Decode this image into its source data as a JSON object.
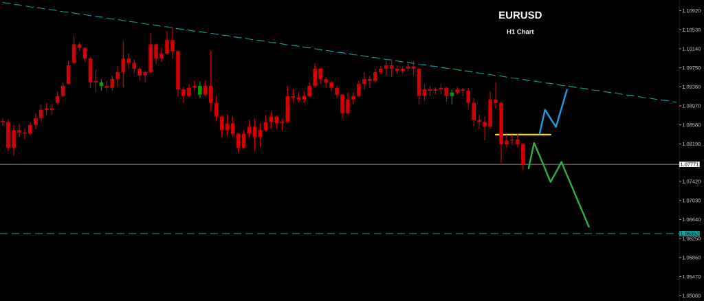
{
  "chart_data": {
    "type": "candlestick",
    "title": "EURUSD",
    "subtitle": "H1 Chart",
    "categories": [
      null,
      null,
      null,
      null,
      null,
      null,
      null,
      null,
      null,
      null,
      null,
      null,
      null,
      null,
      null,
      null,
      null,
      null,
      null,
      null,
      null,
      null,
      null,
      null,
      null,
      null,
      null,
      null,
      null,
      null,
      null,
      null,
      null,
      null,
      null,
      null,
      null,
      null,
      null,
      null,
      null,
      null,
      null,
      null,
      null,
      null,
      null,
      null,
      null,
      null,
      null,
      null,
      null,
      null,
      null,
      null,
      null,
      null,
      null,
      null,
      null,
      null,
      null,
      null,
      null,
      null,
      null,
      null,
      null,
      null,
      null,
      null,
      null,
      null,
      null,
      null,
      null,
      null,
      null,
      null,
      null,
      null,
      null,
      null,
      null,
      null,
      null,
      null,
      null,
      null,
      null,
      null,
      null,
      null,
      null,
      null,
      null,
      null,
      null,
      null,
      null,
      null,
      null,
      null,
      null,
      null,
      null,
      null,
      null,
      null,
      null,
      null,
      null,
      null,
      null,
      null,
      null,
      null,
      null,
      null,
      null,
      null,
      null,
      null
    ],
    "ohlc": [
      [
        1.0864,
        1.0872,
        1.0856,
        1.0866
      ],
      [
        1.0864,
        1.0869,
        1.0804,
        1.0811
      ],
      [
        1.0811,
        1.0858,
        1.0795,
        1.0847
      ],
      [
        1.0847,
        1.0861,
        1.0833,
        1.0842
      ],
      [
        1.0842,
        1.0851,
        1.0828,
        1.084
      ],
      [
        1.084,
        1.0864,
        1.0838,
        1.0858
      ],
      [
        1.0858,
        1.0882,
        1.0849,
        1.0872
      ],
      [
        1.0872,
        1.09,
        1.0864,
        1.0889
      ],
      [
        1.0889,
        1.0903,
        1.0878,
        1.0892
      ],
      [
        1.0892,
        1.09,
        1.0879,
        1.0889
      ],
      [
        1.0903,
        1.0927,
        1.0899,
        1.0917
      ],
      [
        1.0917,
        1.0945,
        1.0914,
        1.0938
      ],
      [
        1.0942,
        1.099,
        1.0941,
        1.098
      ],
      [
        1.0985,
        1.1041,
        1.0983,
        1.1023
      ],
      [
        1.1023,
        1.1027,
        1.1009,
        1.1016
      ],
      [
        1.1016,
        1.1018,
        1.0987,
        1.0994
      ],
      [
        1.0994,
        1.0997,
        1.0934,
        1.0945
      ],
      [
        1.0945,
        1.0971,
        1.0924,
        1.0948
      ],
      [
        1.0945,
        1.0952,
        1.0928,
        1.0938
      ],
      [
        1.0938,
        1.0948,
        1.0927,
        1.0934
      ],
      [
        1.0934,
        1.0959,
        1.0928,
        1.0952
      ],
      [
        1.0952,
        1.0978,
        1.0935,
        1.0966
      ],
      [
        1.0966,
        1.103,
        1.0935,
        1.0994
      ],
      [
        1.0994,
        1.1004,
        1.0973,
        1.0985
      ],
      [
        1.0985,
        1.0992,
        1.0963,
        1.0973
      ],
      [
        1.0973,
        1.0976,
        1.0949,
        1.0959
      ],
      [
        1.0959,
        1.0969,
        1.0945,
        1.0966
      ],
      [
        1.0966,
        1.1047,
        1.0963,
        1.1023
      ],
      [
        1.1023,
        1.1025,
        1.0983,
        1.0994
      ],
      [
        1.0994,
        1.1016,
        1.0987,
        1.1004
      ],
      [
        1.1004,
        1.1051,
        1.1002,
        1.1032
      ],
      [
        1.1032,
        1.1058,
        1.0994,
        1.1009
      ],
      [
        1.1009,
        1.1011,
        1.0917,
        1.0931
      ],
      [
        1.0931,
        1.0935,
        1.0903,
        1.0917
      ],
      [
        1.0917,
        1.0941,
        1.0914,
        1.0934
      ],
      [
        1.0934,
        1.0949,
        1.0927,
        1.0938
      ],
      [
        1.0938,
        1.0947,
        1.0913,
        1.092
      ],
      [
        1.092,
        1.0949,
        1.0917,
        1.0938
      ],
      [
        1.0938,
        1.1011,
        1.0885,
        1.0903
      ],
      [
        1.0903,
        1.0917,
        1.0865,
        1.0875
      ],
      [
        1.0875,
        1.0878,
        1.0833,
        1.0847
      ],
      [
        1.0847,
        1.0879,
        1.0837,
        1.0861
      ],
      [
        1.0861,
        1.0875,
        1.0833,
        1.084
      ],
      [
        1.084,
        1.0842,
        1.0802,
        1.0811
      ],
      [
        1.0811,
        1.0847,
        1.0809,
        1.084
      ],
      [
        1.084,
        1.0868,
        1.0833,
        1.0854
      ],
      [
        1.0854,
        1.0871,
        1.0804,
        1.0833
      ],
      [
        1.0833,
        1.0861,
        1.0814,
        1.0847
      ],
      [
        1.0847,
        1.0878,
        1.0844,
        1.0864
      ],
      [
        1.0864,
        1.0885,
        1.0851,
        1.0875
      ],
      [
        1.0875,
        1.0878,
        1.0851,
        1.0861
      ],
      [
        1.0861,
        1.0871,
        1.0847,
        1.0864
      ],
      [
        1.0864,
        1.0938,
        1.0861,
        1.0917
      ],
      [
        1.0917,
        1.0931,
        1.0903,
        1.0914
      ],
      [
        1.0914,
        1.0924,
        1.0903,
        1.091
      ],
      [
        1.091,
        1.0927,
        1.0903,
        1.0917
      ],
      [
        1.0917,
        1.0945,
        1.0914,
        1.0938
      ],
      [
        1.0938,
        1.0985,
        1.0935,
        1.0973
      ],
      [
        1.0973,
        1.0976,
        1.0942,
        1.0952
      ],
      [
        1.0952,
        1.0956,
        1.0935,
        1.0945
      ],
      [
        1.0945,
        1.0948,
        1.0927,
        1.0934
      ],
      [
        1.0934,
        1.0938,
        1.0914,
        1.092
      ],
      [
        1.092,
        1.0921,
        1.0871,
        1.0882
      ],
      [
        1.0882,
        1.0924,
        1.0879,
        1.091
      ],
      [
        1.091,
        1.0924,
        1.09,
        1.0917
      ],
      [
        1.0917,
        1.0948,
        1.0914,
        1.0942
      ],
      [
        1.0942,
        1.0966,
        1.0931,
        1.0952
      ],
      [
        1.0952,
        1.0959,
        1.0934,
        1.0948
      ],
      [
        1.0948,
        1.0973,
        1.0945,
        1.0966
      ],
      [
        1.0966,
        1.0979,
        1.0962,
        1.0973
      ],
      [
        1.0973,
        1.099,
        1.0959,
        1.098
      ],
      [
        1.098,
        1.0992,
        1.0956,
        1.0973
      ],
      [
        1.0973,
        1.098,
        1.0962,
        1.0969
      ],
      [
        1.0969,
        1.0978,
        1.0963,
        1.0973
      ],
      [
        1.0973,
        1.0985,
        1.0968,
        1.0978
      ],
      [
        1.0978,
        1.099,
        1.0959,
        1.0973
      ],
      [
        1.0973,
        1.0976,
        1.0899,
        1.0917
      ],
      [
        1.0917,
        1.0941,
        1.0907,
        1.0931
      ],
      [
        1.0931,
        1.0938,
        1.0917,
        1.0928
      ],
      [
        1.0928,
        1.0935,
        1.092,
        1.0931
      ],
      [
        1.0931,
        1.0942,
        1.0921,
        1.0934
      ],
      [
        1.0934,
        1.0937,
        1.0906,
        1.0917
      ],
      [
        1.0917,
        1.0931,
        1.09,
        1.0924
      ],
      [
        1.0924,
        1.0937,
        1.092,
        1.0931
      ],
      [
        1.0931,
        1.0934,
        1.0917,
        1.0928
      ],
      [
        1.0928,
        1.0934,
        1.0893,
        1.0903
      ],
      [
        1.0903,
        1.0913,
        1.0856,
        1.0868
      ],
      [
        1.0868,
        1.0879,
        1.0851,
        1.0864
      ],
      [
        1.0864,
        1.0875,
        1.0826,
        1.0854
      ],
      [
        1.0854,
        1.0927,
        1.0849,
        1.091
      ],
      [
        1.091,
        1.0945,
        1.0892,
        1.0903
      ],
      [
        1.0903,
        1.0906,
        1.078,
        1.0818
      ],
      [
        1.0818,
        1.0838,
        1.0811,
        1.0826
      ],
      [
        1.0826,
        1.0838,
        1.0816,
        1.0828
      ],
      [
        1.0828,
        1.084,
        1.0811,
        1.0818
      ],
      [
        1.0818,
        1.0821,
        1.0765,
        1.0777
      ],
      null,
      null,
      null,
      null,
      null,
      null,
      null,
      null,
      null,
      null,
      null,
      null,
      null,
      null,
      null,
      null,
      null,
      null,
      null,
      null,
      null,
      null,
      null,
      null,
      null,
      null,
      null,
      null
    ],
    "colors": [
      "#d40000",
      "#d40000",
      "#d40000",
      "#d40000",
      "#d40000",
      "#d40000",
      "#d40000",
      "#d40000",
      "#d40000",
      "#d40000",
      "#d40000",
      "#d40000",
      "#d40000",
      "#d40000",
      "#d40000",
      "#d40000",
      "#d40000",
      "#d40000",
      "#00a000",
      "#d40000",
      "#d40000",
      "#d40000",
      "#d40000",
      "#d40000",
      "#d40000",
      "#d40000",
      "#d40000",
      "#d40000",
      "#d40000",
      "#d40000",
      "#d40000",
      "#d40000",
      "#d40000",
      "#d40000",
      "#d40000",
      "#d40000",
      "#00a000",
      "#d40000",
      "#d40000",
      "#d40000",
      "#d40000",
      "#d40000",
      "#d40000",
      "#d40000",
      "#d40000",
      "#d40000",
      "#d40000",
      "#d40000",
      "#d40000",
      "#d40000",
      "#d40000",
      "#d40000",
      "#d40000",
      "#d40000",
      "#d40000",
      "#d40000",
      "#d40000",
      "#d40000",
      "#d40000",
      "#d40000",
      "#d40000",
      "#d40000",
      "#d40000",
      "#d40000",
      "#d40000",
      "#d40000",
      "#d40000",
      "#d40000",
      "#d40000",
      "#d40000",
      "#d40000",
      "#d40000",
      "#d40000",
      "#d40000",
      "#d40000",
      "#d40000",
      "#d40000",
      "#d40000",
      "#d40000",
      "#d40000",
      "#d40000",
      "#d40000",
      "#00a000",
      "#d40000",
      "#d40000",
      "#d40000",
      "#d40000",
      "#d40000",
      "#d40000",
      "#d40000",
      "#d40000",
      "#d40000",
      "#d40000",
      "#d40000",
      "#d40000",
      "#d40000",
      null,
      null,
      null,
      null,
      null,
      null,
      null,
      null,
      null,
      null,
      null,
      null,
      null,
      null,
      null,
      null,
      null,
      null,
      null,
      null,
      null,
      null,
      null,
      null,
      null,
      null,
      null,
      null
    ],
    "series": [
      {
        "type": "line",
        "color": "#1aa3a3",
        "line_style": "dashed",
        "values": [
          1.1109,
          1.1107,
          1.1105,
          1.1104,
          1.1102,
          1.11,
          1.1099,
          1.1097,
          1.1095,
          1.1094,
          1.1092,
          1.109,
          1.1089,
          1.1087,
          1.1085,
          1.1084,
          1.1082,
          1.108,
          1.1079,
          1.1077,
          1.1075,
          1.1074,
          1.1072,
          1.107,
          1.1069,
          1.1067,
          1.1065,
          1.1064,
          1.1062,
          1.106,
          1.1059,
          1.1057,
          1.1055,
          1.1054,
          1.1052,
          1.105,
          1.1049,
          1.1047,
          1.1046,
          1.1044,
          1.1042,
          1.1041,
          1.1039,
          1.1037,
          1.1036,
          1.1034,
          1.1032,
          1.1031,
          1.1029,
          1.1027,
          1.1026,
          1.1024,
          1.1022,
          1.1021,
          1.1019,
          1.1017,
          1.1016,
          1.1014,
          1.1012,
          1.1011,
          1.1009,
          1.1007,
          1.1006,
          1.1004,
          1.1002,
          1.1001,
          1.0999,
          1.0997,
          1.0996,
          1.0994,
          1.0992,
          1.0991,
          1.0989,
          1.0987,
          1.0986,
          1.0984,
          1.0982,
          1.0981,
          1.0979,
          1.0978,
          1.0976,
          1.0974,
          1.0973,
          1.0971,
          1.0969,
          1.0968,
          1.0966,
          1.0964,
          1.0963,
          1.0961,
          1.0959,
          1.0958,
          1.0956,
          1.0954,
          1.0953,
          1.0951,
          1.0949,
          1.0948,
          1.0946,
          1.0944,
          1.0943,
          1.0941,
          1.0939,
          1.0938,
          1.0936,
          1.0934,
          1.0933,
          1.0931,
          1.0929,
          1.0928,
          1.0926,
          1.0924,
          1.0923,
          1.0921,
          1.0919,
          1.0918,
          1.0916,
          1.0914,
          1.0913,
          1.0911,
          1.0909,
          1.0908,
          1.0906,
          1.0904
        ]
      },
      {
        "type": "line",
        "color": "#f5e100",
        "values": [
          null,
          null,
          null,
          null,
          null,
          null,
          null,
          null,
          null,
          null,
          null,
          null,
          null,
          null,
          null,
          null,
          null,
          null,
          null,
          null,
          null,
          null,
          null,
          null,
          null,
          null,
          null,
          null,
          null,
          null,
          null,
          null,
          null,
          null,
          null,
          null,
          null,
          null,
          null,
          null,
          null,
          null,
          null,
          null,
          null,
          null,
          null,
          null,
          null,
          null,
          null,
          null,
          null,
          null,
          null,
          null,
          null,
          null,
          null,
          null,
          null,
          null,
          null,
          null,
          null,
          null,
          null,
          null,
          null,
          null,
          null,
          null,
          null,
          null,
          null,
          null,
          null,
          null,
          null,
          null,
          null,
          null,
          null,
          null,
          null,
          null,
          null,
          null,
          null,
          null,
          1.0838,
          1.0838,
          1.0838,
          1.0838,
          1.0838,
          1.0838,
          1.0838,
          1.0838,
          1.0838,
          1.0838,
          1.0838,
          null,
          null,
          null,
          null,
          null,
          null,
          null,
          null,
          null,
          null,
          null,
          null,
          null,
          null,
          null,
          null,
          null,
          null,
          null,
          null,
          null,
          null,
          null
        ]
      },
      {
        "type": "line",
        "color": "#1e9de8",
        "values": [
          null,
          null,
          null,
          null,
          null,
          null,
          null,
          null,
          null,
          null,
          null,
          null,
          null,
          null,
          null,
          null,
          null,
          null,
          null,
          null,
          null,
          null,
          null,
          null,
          null,
          null,
          null,
          null,
          null,
          null,
          null,
          null,
          null,
          null,
          null,
          null,
          null,
          null,
          null,
          null,
          null,
          null,
          null,
          null,
          null,
          null,
          null,
          null,
          null,
          null,
          null,
          null,
          null,
          null,
          null,
          null,
          null,
          null,
          null,
          null,
          null,
          null,
          null,
          null,
          null,
          null,
          null,
          null,
          null,
          null,
          null,
          null,
          null,
          null,
          null,
          null,
          null,
          null,
          null,
          null,
          null,
          null,
          null,
          null,
          null,
          null,
          null,
          null,
          null,
          null,
          null,
          null,
          null,
          null,
          null,
          null,
          null,
          null,
          1.084,
          1.0889,
          1.0871,
          1.0854,
          1.0892,
          1.093,
          null,
          null,
          null,
          null,
          null,
          null,
          null,
          null,
          null,
          null,
          null,
          null,
          null,
          null,
          null,
          null,
          null,
          null,
          null,
          null
        ]
      },
      {
        "type": "line",
        "color": "#2eb04a",
        "values": [
          null,
          null,
          null,
          null,
          null,
          null,
          null,
          null,
          null,
          null,
          null,
          null,
          null,
          null,
          null,
          null,
          null,
          null,
          null,
          null,
          null,
          null,
          null,
          null,
          null,
          null,
          null,
          null,
          null,
          null,
          null,
          null,
          null,
          null,
          null,
          null,
          null,
          null,
          null,
          null,
          null,
          null,
          null,
          null,
          null,
          null,
          null,
          null,
          null,
          null,
          null,
          null,
          null,
          null,
          null,
          null,
          null,
          null,
          null,
          null,
          null,
          null,
          null,
          null,
          null,
          null,
          null,
          null,
          null,
          null,
          null,
          null,
          null,
          null,
          null,
          null,
          null,
          null,
          null,
          null,
          null,
          null,
          null,
          null,
          null,
          null,
          null,
          null,
          null,
          null,
          null,
          null,
          null,
          null,
          null,
          null,
          1.0769,
          1.0821,
          1.0795,
          1.0768,
          1.0741,
          1.0761,
          1.0782,
          1.0755,
          1.0729,
          1.0702,
          1.0676,
          1.0649,
          null,
          null,
          null,
          null,
          null,
          null,
          null,
          null,
          null,
          null,
          null,
          null,
          null,
          null,
          null,
          null
        ]
      }
    ],
    "ylim": [
      1.0497,
      1.1114
    ],
    "yticks": [
      {
        "value": 1.1092,
        "label": "1.10920"
      },
      {
        "value": 1.1053,
        "label": "1.10530"
      },
      {
        "value": 1.1014,
        "label": "1.10140"
      },
      {
        "value": 1.0975,
        "label": "1.09750"
      },
      {
        "value": 1.0936,
        "label": "1.09360"
      },
      {
        "value": 1.0897,
        "label": "1.08970"
      },
      {
        "value": 1.0858,
        "label": "1.08580"
      },
      {
        "value": 1.0819,
        "label": "1.08190"
      },
      {
        "value": 1.0781,
        "label": null
      },
      {
        "value": 1.0742,
        "label": "1.07420"
      },
      {
        "value": 1.0703,
        "label": "1.07030"
      },
      {
        "value": 1.0664,
        "label": "1.06640"
      },
      {
        "value": 1.0625,
        "label": "1.06250"
      },
      {
        "value": 1.0586,
        "label": "1.05860"
      },
      {
        "value": 1.0547,
        "label": "1.05470"
      },
      {
        "value": 1.0508,
        "label": "1.05080"
      }
    ],
    "tick_labels": "y",
    "ref_lines": [
      {
        "axis": "y",
        "value": 1.07771,
        "label": "1.07771",
        "color": "#8c8c8c"
      },
      {
        "axis": "y",
        "value": 1.06352,
        "label": "1.06352",
        "color": "#1aa3a3",
        "line_style": "dashed"
      }
    ]
  }
}
